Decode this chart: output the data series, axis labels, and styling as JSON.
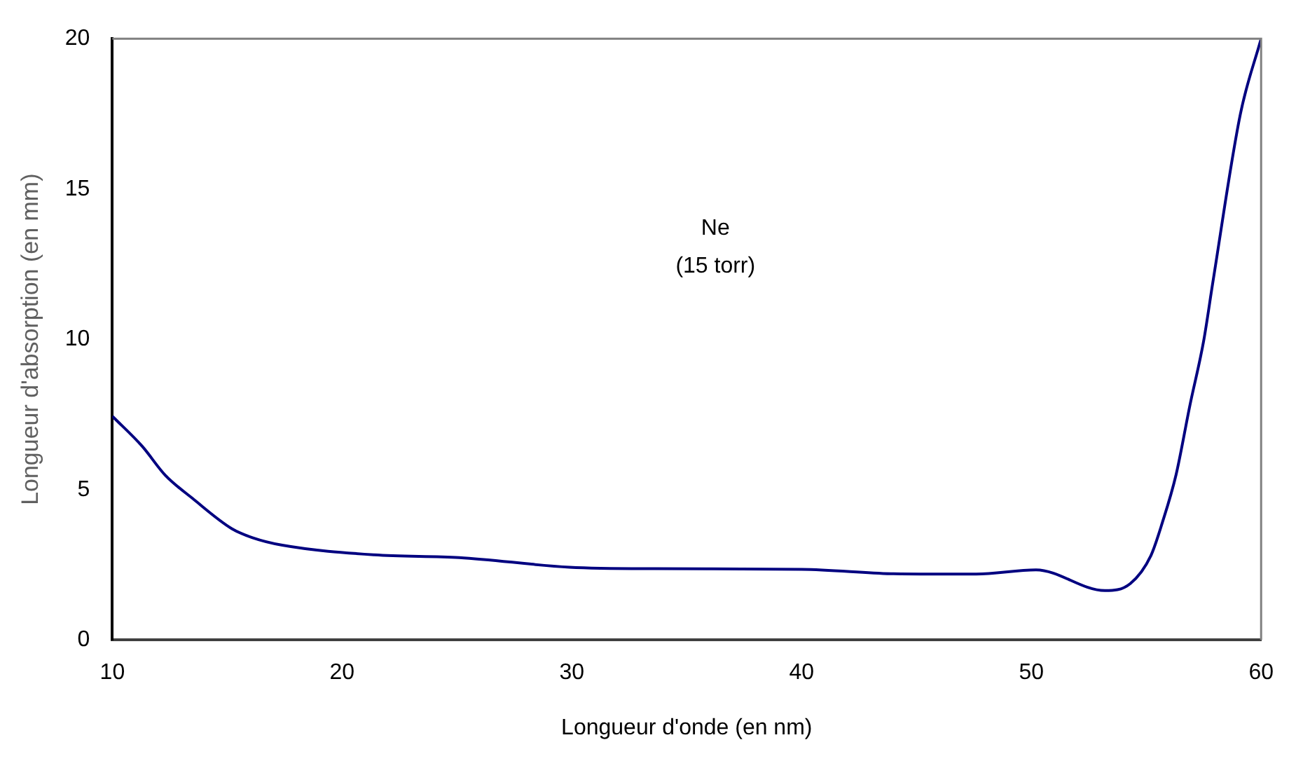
{
  "chart_data": {
    "type": "line",
    "xlabel": "Longueur d'onde (en nm)",
    "ylabel": "Longueur d'absorption (en mm)",
    "annotations": [
      "Ne",
      "(15 torr)"
    ],
    "x": [
      10,
      11.3,
      12.3,
      13.5,
      15.2,
      16.1,
      17.4,
      21.4,
      25.1,
      29.9,
      33.6,
      40,
      44,
      45.7,
      47.6,
      50.2,
      53.2,
      54.3,
      55.2,
      55.7,
      56.3,
      56.9,
      57.5,
      57.9,
      59.1,
      60
    ],
    "series": [
      {
        "color": "#000080",
        "values": [
          7.44,
          6.44,
          5.48,
          4.7,
          3.7,
          3.4,
          3.15,
          2.83,
          2.74,
          2.42,
          2.37,
          2.35,
          2.2,
          2.19,
          2.19,
          2.33,
          1.64,
          1.87,
          2.8,
          3.9,
          5.5,
          7.8,
          9.95,
          11.9,
          17.5,
          20
        ]
      }
    ],
    "xlim": [
      10,
      60
    ],
    "xticks": [
      10,
      20,
      30,
      40,
      50,
      60
    ],
    "ylim": [
      0,
      20
    ],
    "yticks": [
      0,
      5,
      10,
      15,
      20
    ],
    "grid": false,
    "legend": false,
    "marker": "none",
    "line_style": "solid"
  }
}
